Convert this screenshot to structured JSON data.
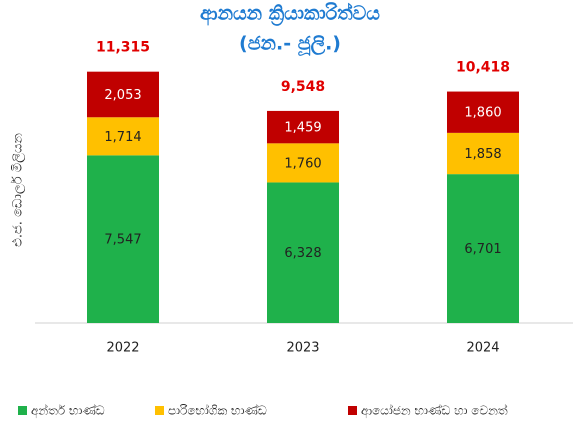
{
  "chart_data": {
    "type": "stacked_bar",
    "title": "ආනයන ක්‍රියාකාරිත්වය",
    "subtitle": "(ජන.- ජූලි.)",
    "y_label": "එ.ජ. ඩොලර් මිලියන",
    "categories": [
      "2022",
      "2023",
      "2024"
    ],
    "series": [
      {
        "name": "අන්තර් භාණ්ඩ",
        "color": "#1fb14b",
        "values": [
          7547,
          6328,
          6701
        ],
        "value_labels": [
          "7,547",
          "6,328",
          "6,701"
        ]
      },
      {
        "name": "පාරිභෝගික භාණ්ඩ",
        "color": "#ffc000",
        "values": [
          1714,
          1760,
          1858
        ],
        "value_labels": [
          "1,714",
          "1,760",
          "1,858"
        ]
      },
      {
        "name": "ආයෝජන භාණ්ඩ හා වෙනත්",
        "color": "#c00000",
        "values": [
          2053,
          1459,
          1860
        ],
        "value_labels": [
          "2,053",
          "1,459",
          "1,860"
        ]
      }
    ],
    "totals": [
      11315,
      9548,
      10418
    ],
    "total_labels": [
      "11,315",
      "9,548",
      "10,418"
    ],
    "ylim": [
      0,
      14000
    ]
  }
}
